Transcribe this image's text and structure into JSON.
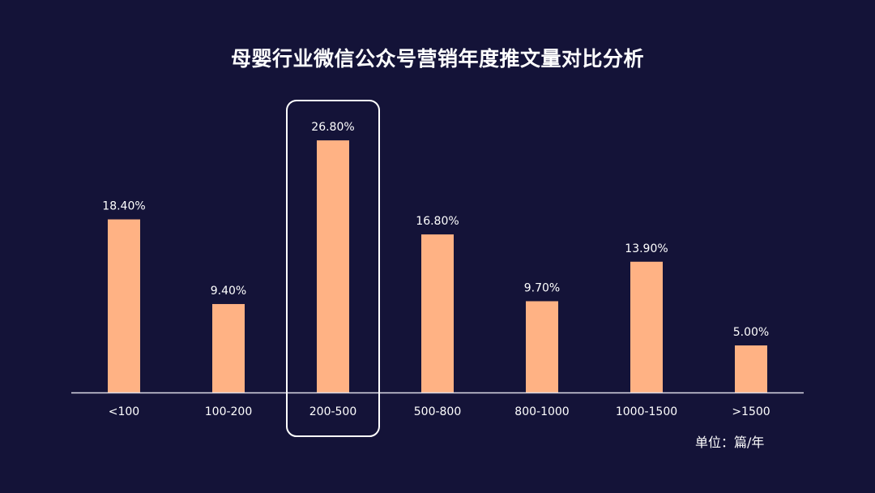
{
  "chart_data": {
    "type": "bar",
    "title": "母婴行业微信公众号营销年度推文量对比分析",
    "categories": [
      "<100",
      "100-200",
      "200-500",
      "500-800",
      "800-1000",
      "1000-1500",
      ">1500"
    ],
    "values": [
      18.4,
      9.4,
      26.8,
      16.8,
      9.7,
      13.9,
      5.0
    ],
    "value_labels": [
      "18.40%",
      "9.40%",
      "26.80%",
      "16.80%",
      "9.70%",
      "13.90%",
      "5.00%"
    ],
    "unit_note": "单位：篇/年",
    "highlighted_category": "200-500",
    "ylim": [
      0,
      30
    ],
    "grid": false,
    "legend": "none",
    "xlabel": "",
    "ylabel": ""
  },
  "colors": {
    "background": "#141338",
    "bar": "#FFB284",
    "axis": "#DADAE6",
    "highlight_frame": "#FFFFFF",
    "text": "#FFFFFF"
  }
}
